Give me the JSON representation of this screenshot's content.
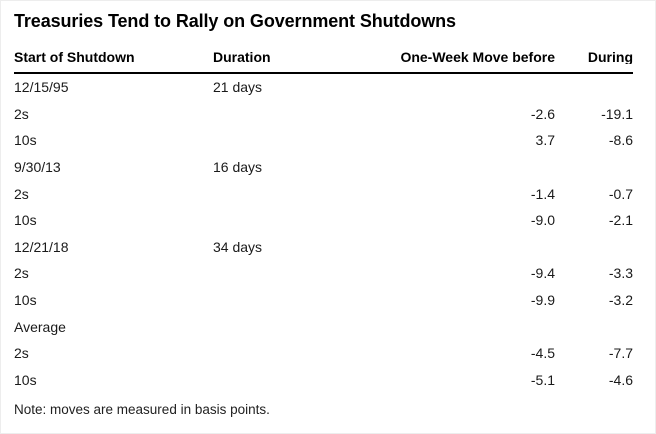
{
  "chart_data": {
    "type": "table",
    "title": "Treasuries Tend to Rally on Government Shutdowns",
    "columns": [
      "Start of Shutdown",
      "Duration",
      "One-Week Move before",
      "During"
    ],
    "rows": [
      [
        "12/15/95",
        "21 days",
        "",
        ""
      ],
      [
        "2s",
        "",
        "-2.6",
        "-19.1"
      ],
      [
        "10s",
        "",
        "3.7",
        "-8.6"
      ],
      [
        "9/30/13",
        "16 days",
        "",
        ""
      ],
      [
        "2s",
        "",
        "-1.4",
        "-0.7"
      ],
      [
        "10s",
        "",
        "-9.0",
        "-2.1"
      ],
      [
        "12/21/18",
        "34 days",
        "",
        ""
      ],
      [
        "2s",
        "",
        "-9.4",
        "-3.3"
      ],
      [
        "10s",
        "",
        "-9.9",
        "-3.2"
      ],
      [
        "Average",
        "",
        "",
        ""
      ],
      [
        "2s",
        "",
        "-4.5",
        "-7.7"
      ],
      [
        "10s",
        "",
        "-5.1",
        "-4.6"
      ]
    ],
    "note": "Note: moves are measured in basis points.",
    "layout": {
      "grid": "off",
      "header_rule": "on",
      "numeric_columns_align": "right"
    },
    "colors": {
      "background": "#ffffff",
      "text": "#1a1a1a",
      "title": "#000000",
      "header_rule": "#000000"
    }
  }
}
